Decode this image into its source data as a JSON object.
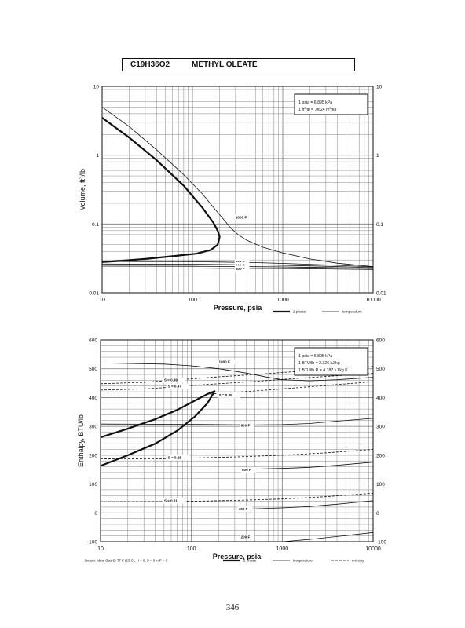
{
  "header": {
    "formula": "C19H36O2",
    "compound": "METHYL OLEATE"
  },
  "page_number": "346",
  "chart_data": [
    {
      "type": "line",
      "title": "",
      "xlabel": "Pressure,  psia",
      "ylabel": "Volume, ft^3/lb",
      "xscale": "log",
      "yscale": "log",
      "xlim": [
        10,
        10000
      ],
      "ylim": [
        0.01,
        10
      ],
      "grid": true,
      "x_ticks": [
        "10",
        "100",
        "1000",
        "10000"
      ],
      "y_ticks": [
        "0.01",
        "0.1",
        "1",
        "10"
      ],
      "conversion_box": [
        "1 psia = 6.895 kPa",
        "1 ft^3/lb = .0624 m^3/kg"
      ],
      "legend": [
        {
          "label": "2 phase",
          "style": "thick"
        },
        {
          "label": "temperature",
          "style": "thin"
        }
      ],
      "series": [
        {
          "role": "2 phase",
          "label": "",
          "x": [
            10,
            20,
            40,
            80,
            130,
            170,
            190,
            200,
            190,
            160,
            110,
            60,
            30,
            15,
            10
          ],
          "y": [
            3.5,
            1.8,
            0.85,
            0.36,
            0.17,
            0.105,
            0.08,
            0.065,
            0.05,
            0.042,
            0.037,
            0.034,
            0.031,
            0.029,
            0.028
          ]
        },
        {
          "role": "temperature",
          "label": "",
          "x": [
            10,
            20,
            40,
            80,
            130,
            180,
            230,
            260
          ],
          "y": [
            5.0,
            2.6,
            1.2,
            0.52,
            0.27,
            0.16,
            0.11,
            0.09
          ]
        },
        {
          "role": "temperature",
          "label": "1000 F",
          "x": [
            260,
            320,
            400,
            600,
            1000,
            2000,
            4000,
            10000
          ],
          "y": [
            0.09,
            0.07,
            0.058,
            0.046,
            0.038,
            0.031,
            0.027,
            0.024
          ]
        },
        {
          "role": "temperature",
          "label": "800 F",
          "x": [
            10,
            100,
            200,
            500,
            1000,
            3000,
            10000
          ],
          "y": [
            0.0285,
            0.0283,
            0.028,
            0.0275,
            0.0268,
            0.0255,
            0.0238
          ]
        },
        {
          "role": "temperature",
          "label": "600 F",
          "x": [
            10,
            100,
            200,
            500,
            1000,
            3000,
            10000
          ],
          "y": [
            0.0262,
            0.026,
            0.0258,
            0.0255,
            0.0251,
            0.0243,
            0.0232
          ]
        },
        {
          "role": "temperature",
          "label": "400 F",
          "x": [
            10,
            100,
            200,
            500,
            1000,
            3000,
            10000
          ],
          "y": [
            0.0244,
            0.0243,
            0.0242,
            0.024,
            0.0238,
            0.0233,
            0.0226
          ]
        },
        {
          "role": "temperature",
          "label": "200 F",
          "x": [
            10,
            100,
            200,
            500,
            1000,
            3000,
            10000
          ],
          "y": [
            0.0228,
            0.0228,
            0.0227,
            0.0226,
            0.0225,
            0.0222,
            0.0218
          ]
        }
      ]
    },
    {
      "type": "line",
      "title": "",
      "xlabel": "Pressure,  psia",
      "ylabel": "Enthalpy, BTU/lb",
      "xscale": "log",
      "yscale": "linear",
      "xlim": [
        10,
        10000
      ],
      "ylim": [
        -100,
        600
      ],
      "grid": true,
      "x_ticks": [
        "10",
        "100",
        "1000",
        "10000"
      ],
      "y_ticks": [
        "-100",
        "0",
        "100",
        "200",
        "300",
        "400",
        "500",
        "600"
      ],
      "conversion_box": [
        "1 psia = 6.895 kPa",
        "1 BTU/lb = 2.326 kJ/kg",
        "1 BTU/lb R = 4.187 kJ/kg K"
      ],
      "footnote": "Datum: Ideal Gas @ 77 F (25 C), H = 0, S = 0 in F = 0",
      "legend": [
        {
          "label": "2 phase",
          "style": "thick"
        },
        {
          "label": "temperature",
          "style": "thin"
        },
        {
          "label": "entropy",
          "style": "dashed"
        }
      ],
      "series": [
        {
          "role": "2 phase",
          "label": "",
          "x": [
            10,
            20,
            40,
            70,
            110,
            150,
            180,
            150,
            110,
            70,
            40,
            20,
            10
          ],
          "y": [
            262,
            292,
            325,
            357,
            390,
            412,
            422,
            380,
            335,
            285,
            240,
            200,
            163
          ]
        },
        {
          "role": "temperature",
          "label": "1000 F",
          "x": [
            10,
            50,
            100,
            200,
            400,
            700,
            1000,
            2000,
            4000,
            10000
          ],
          "y": [
            520,
            516,
            510,
            500,
            485,
            470,
            462,
            458,
            462,
            470
          ]
        },
        {
          "role": "temperature",
          "label": "800 F",
          "x": [
            10,
            100,
            200,
            500,
            1000,
            2000,
            4000,
            10000
          ],
          "y": [
            308,
            307,
            306,
            305,
            306,
            310,
            318,
            328
          ]
        },
        {
          "role": "temperature",
          "label": "600 F",
          "x": [
            10,
            100,
            200,
            500,
            1000,
            2000,
            4000,
            10000
          ],
          "y": [
            152,
            152,
            152,
            152,
            154,
            158,
            165,
            176
          ]
        },
        {
          "role": "temperature",
          "label": "400 F",
          "x": [
            10,
            100,
            200,
            500,
            1000,
            2000,
            4000,
            10000
          ],
          "y": [
            13,
            13,
            13,
            14,
            17,
            22,
            30,
            42
          ]
        },
        {
          "role": "temperature",
          "label": "200 F",
          "x": [
            10,
            100,
            500,
            1000,
            2000,
            4000,
            10000
          ],
          "y": [
            -105,
            -105,
            -103,
            -100,
            -92,
            -82,
            -68
          ]
        },
        {
          "role": "entropy",
          "label": "S = 0.49",
          "x": [
            10,
            30,
            60,
            100,
            200,
            500,
            1000,
            3000,
            10000
          ],
          "y": [
            448,
            453,
            460,
            465,
            472,
            480,
            487,
            497,
            508
          ]
        },
        {
          "role": "entropy",
          "label": "S = 0.47",
          "x": [
            10,
            30,
            60,
            100,
            200,
            500,
            1000,
            3000,
            10000
          ],
          "y": [
            426,
            430,
            436,
            442,
            448,
            456,
            463,
            473,
            484
          ]
        },
        {
          "role": "entropy",
          "label": "S = 0.45",
          "x": [
            160,
            300,
            1000,
            3000,
            10000
          ],
          "y": [
            412,
            418,
            430,
            442,
            455
          ]
        },
        {
          "role": "entropy",
          "label": "S = 0.28",
          "x": [
            10,
            50,
            100,
            300,
            1000,
            3000,
            10000
          ],
          "y": [
            187,
            188,
            190,
            194,
            200,
            208,
            220
          ]
        },
        {
          "role": "entropy",
          "label": "S = 0.11",
          "x": [
            10,
            50,
            100,
            300,
            1000,
            3000,
            10000
          ],
          "y": [
            38,
            39,
            40,
            43,
            48,
            56,
            68
          ]
        }
      ]
    }
  ]
}
